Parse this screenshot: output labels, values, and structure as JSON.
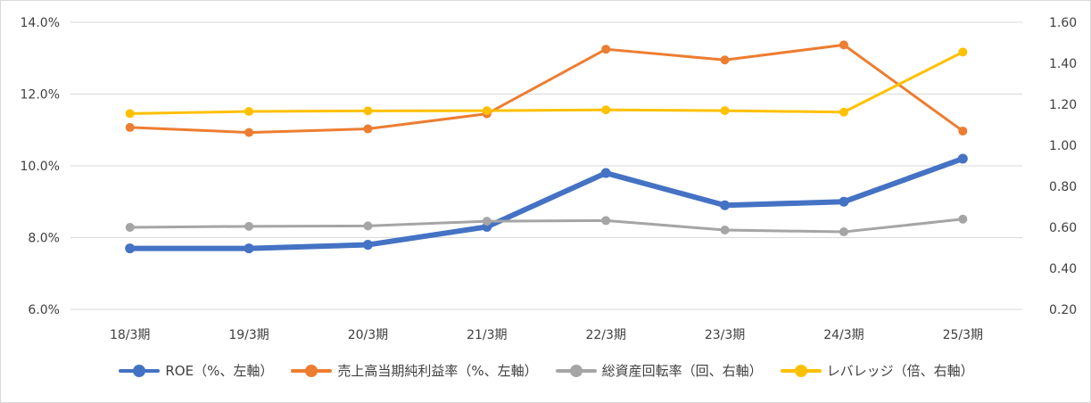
{
  "chart_data": {
    "type": "line",
    "categories": [
      "18/3期",
      "19/3期",
      "20/3期",
      "21/3期",
      "22/3期",
      "23/3期",
      "24/3期",
      "25/3期"
    ],
    "y_left": {
      "ticks": [
        "14.0%",
        "12.0%",
        "10.0%",
        "8.0%",
        "6.0%"
      ],
      "range": [
        6.0,
        14.0
      ]
    },
    "y_right": {
      "ticks": [
        "1.60",
        "1.40",
        "1.20",
        "1.00",
        "0.80",
        "0.60",
        "0.40",
        "0.20"
      ],
      "range": [
        0.2,
        1.6
      ]
    },
    "grid": true,
    "legend_position": "bottom",
    "series": [
      {
        "name": "ROE（%、左軸）",
        "axis": "left",
        "color": "#4472C4",
        "values": [
          7.7,
          7.7,
          7.8,
          8.3,
          9.8,
          8.9,
          9.0,
          10.2
        ]
      },
      {
        "name": "売上高当期純利益率（%、左軸）",
        "axis": "left",
        "color": "#ED7D31",
        "values": [
          11.07,
          10.93,
          11.03,
          11.45,
          13.25,
          12.95,
          13.37,
          10.97
        ]
      },
      {
        "name": "総資産回転率（回、右軸）",
        "axis": "right",
        "color": "#A5A5A5",
        "values": [
          0.6,
          0.605,
          0.607,
          0.63,
          0.633,
          0.587,
          0.578,
          0.64
        ]
      },
      {
        "name": "レバレッジ（倍、右軸）",
        "axis": "right",
        "color": "#FFC000",
        "values": [
          1.155,
          1.165,
          1.168,
          1.169,
          1.173,
          1.169,
          1.162,
          1.455
        ]
      }
    ]
  }
}
